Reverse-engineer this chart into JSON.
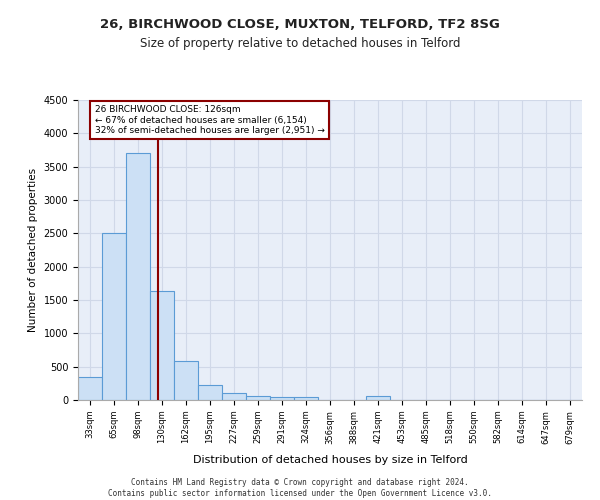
{
  "title1": "26, BIRCHWOOD CLOSE, MUXTON, TELFORD, TF2 8SG",
  "title2": "Size of property relative to detached houses in Telford",
  "xlabel": "Distribution of detached houses by size in Telford",
  "ylabel": "Number of detached properties",
  "bin_labels": [
    "33sqm",
    "65sqm",
    "98sqm",
    "130sqm",
    "162sqm",
    "195sqm",
    "227sqm",
    "259sqm",
    "291sqm",
    "324sqm",
    "356sqm",
    "388sqm",
    "421sqm",
    "453sqm",
    "485sqm",
    "518sqm",
    "550sqm",
    "582sqm",
    "614sqm",
    "647sqm",
    "679sqm"
  ],
  "bar_values": [
    350,
    2500,
    3700,
    1630,
    580,
    220,
    100,
    60,
    50,
    50,
    0,
    0,
    60,
    0,
    0,
    0,
    0,
    0,
    0,
    0,
    0
  ],
  "bar_color": "#cce0f5",
  "bar_edgecolor": "#5b9bd5",
  "vline_x_index": 2.85,
  "vline_color": "#8b0000",
  "annotation_text": "26 BIRCHWOOD CLOSE: 126sqm\n← 67% of detached houses are smaller (6,154)\n32% of semi-detached houses are larger (2,951) →",
  "annotation_box_color": "#8b0000",
  "ylim": [
    0,
    4500
  ],
  "yticks": [
    0,
    500,
    1000,
    1500,
    2000,
    2500,
    3000,
    3500,
    4000,
    4500
  ],
  "grid_color": "#d0d8e8",
  "bg_color": "#e8eef8",
  "footer": "Contains HM Land Registry data © Crown copyright and database right 2024.\nContains public sector information licensed under the Open Government Licence v3.0."
}
